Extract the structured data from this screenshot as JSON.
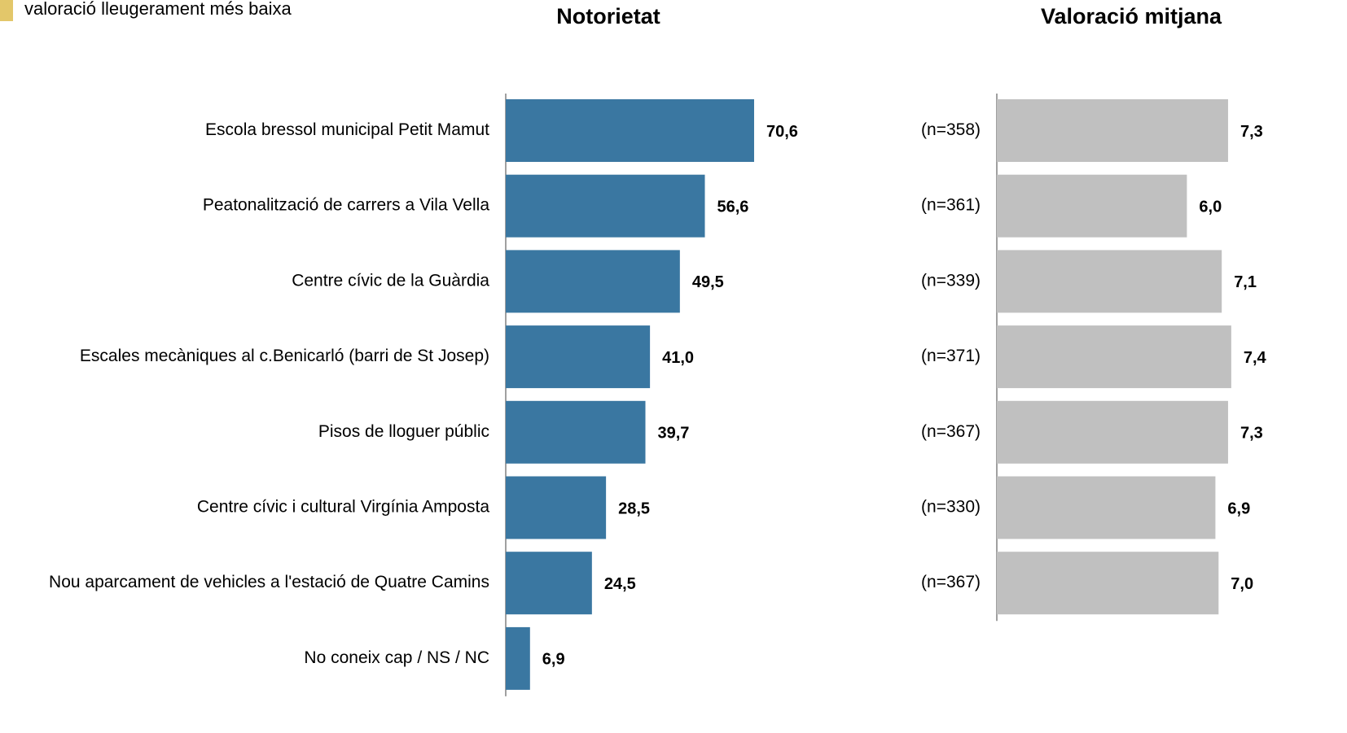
{
  "legend": {
    "label": "valoració lleugerament més baixa",
    "color": "#e3c76a"
  },
  "chart_data": [
    {
      "type": "bar",
      "orientation": "horizontal",
      "title": "Notorietat",
      "categories": [
        "Escola bressol municipal Petit Mamut",
        "Peatonalització de carrers a Vila Vella",
        "Centre cívic de la Guàrdia",
        "Escales mecàniques al c.Benicarló (barri de St Josep)",
        "Pisos de lloguer públic",
        "Centre cívic i cultural Virgínia Amposta",
        "Nou aparcament de vehicles a l'estació de Quatre Camins",
        "No coneix cap / NS / NC"
      ],
      "values": [
        70.6,
        56.6,
        49.5,
        41.0,
        39.7,
        28.5,
        24.5,
        6.9
      ],
      "value_labels": [
        "70,6",
        "56,6",
        "49,5",
        "41,0",
        "39,7",
        "28,5",
        "24,5",
        "6,9"
      ],
      "color": "#3a77a1",
      "xlim": [
        0,
        100
      ]
    },
    {
      "type": "bar",
      "orientation": "horizontal",
      "title": "Valoració mitjana",
      "sample_sizes": [
        "(n=358)",
        "(n=361)",
        "(n=339)",
        "(n=371)",
        "(n=367)",
        "(n=330)",
        "(n=367)"
      ],
      "values": [
        7.3,
        6.0,
        7.1,
        7.4,
        7.3,
        6.9,
        7.0
      ],
      "value_labels": [
        "7,3",
        "6,0",
        "7,1",
        "7,4",
        "7,3",
        "6,9",
        "7,0"
      ],
      "color": "#c0c0c0",
      "xlim": [
        0,
        10
      ]
    }
  ]
}
